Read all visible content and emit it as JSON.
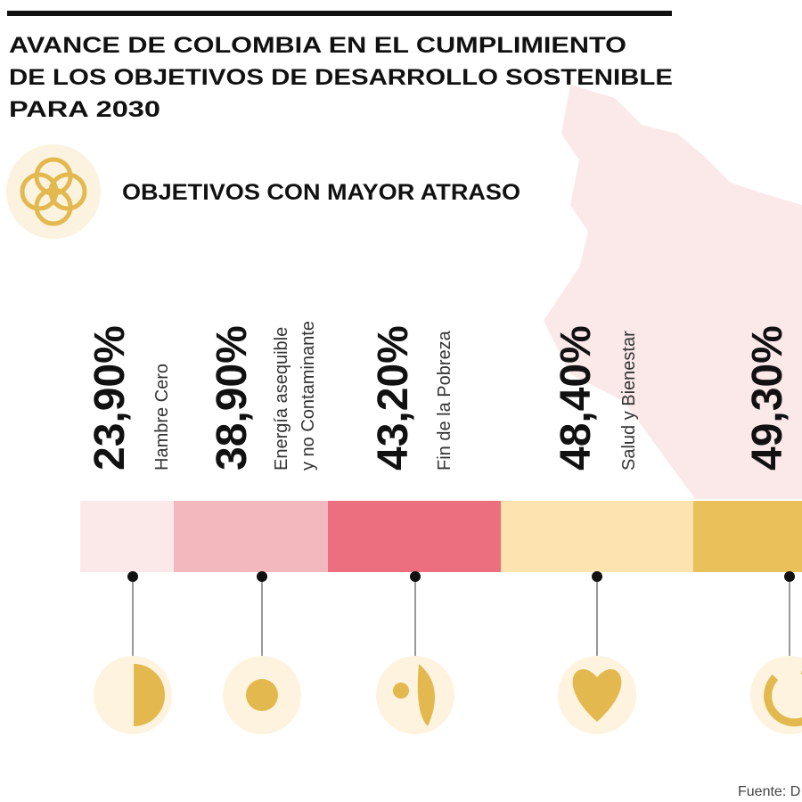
{
  "header": {
    "title": [
      "AVANCE DE COLOMBIA EN EL CUMPLIMIENTO",
      "DE LOS OBJETIVOS DE DESARROLLO SOSTENIBLE",
      "PARA 2030"
    ]
  },
  "section": {
    "title": "OBJETIVOS CON MAYOR ATRASO"
  },
  "items": [
    {
      "value": "23,90%",
      "label": [
        "Hambre Cero"
      ]
    },
    {
      "value": "38,90%",
      "label": [
        "Energía asequible",
        "y no Contaminante"
      ]
    },
    {
      "value": "43,20%",
      "label": [
        "Fin de la Pobreza"
      ]
    },
    {
      "value": "48,40%",
      "label": [
        "Salud y Bienestar"
      ]
    },
    {
      "value": "49,30%"
    }
  ],
  "source": "Fuente: D"
}
